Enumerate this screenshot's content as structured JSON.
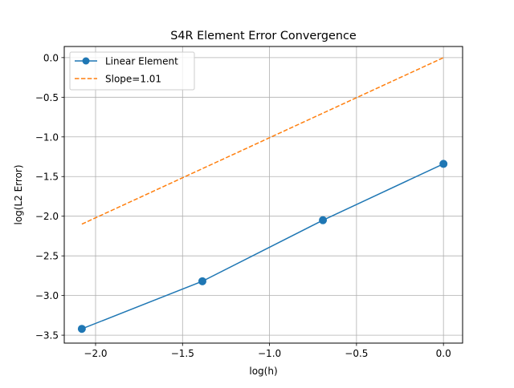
{
  "chart_data": {
    "type": "line",
    "title": "S4R Element Error Convergence",
    "xlabel": "log(h)",
    "ylabel": "log(L2 Error)",
    "xlim": [
      -2.18,
      0.11
    ],
    "ylim": [
      -3.6,
      0.14
    ],
    "xticks": [
      -2.0,
      -1.5,
      -1.0,
      -0.5,
      0.0
    ],
    "xtick_labels": [
      "−2.0",
      "−1.5",
      "−1.0",
      "−0.5",
      "0.0"
    ],
    "yticks": [
      0.0,
      -0.5,
      -1.0,
      -1.5,
      -2.0,
      -2.5,
      -3.0,
      -3.5
    ],
    "ytick_labels": [
      "0.0",
      "−0.5",
      "−1.0",
      "−1.5",
      "−2.0",
      "−2.5",
      "−3.0",
      "−3.5"
    ],
    "grid": true,
    "legend_position": "upper-left",
    "series": [
      {
        "name": "Linear Element",
        "color": "#1f77b4",
        "style": "solid",
        "marker": "circle",
        "x": [
          -2.079,
          -1.386,
          -0.693,
          0.0
        ],
        "y": [
          -3.42,
          -2.82,
          -2.05,
          -1.34
        ]
      },
      {
        "name": "Slope=1.01",
        "color": "#ff7f0e",
        "style": "dashed",
        "marker": "none",
        "x": [
          -2.079,
          0.0
        ],
        "y": [
          -2.1,
          0.0
        ]
      }
    ]
  }
}
